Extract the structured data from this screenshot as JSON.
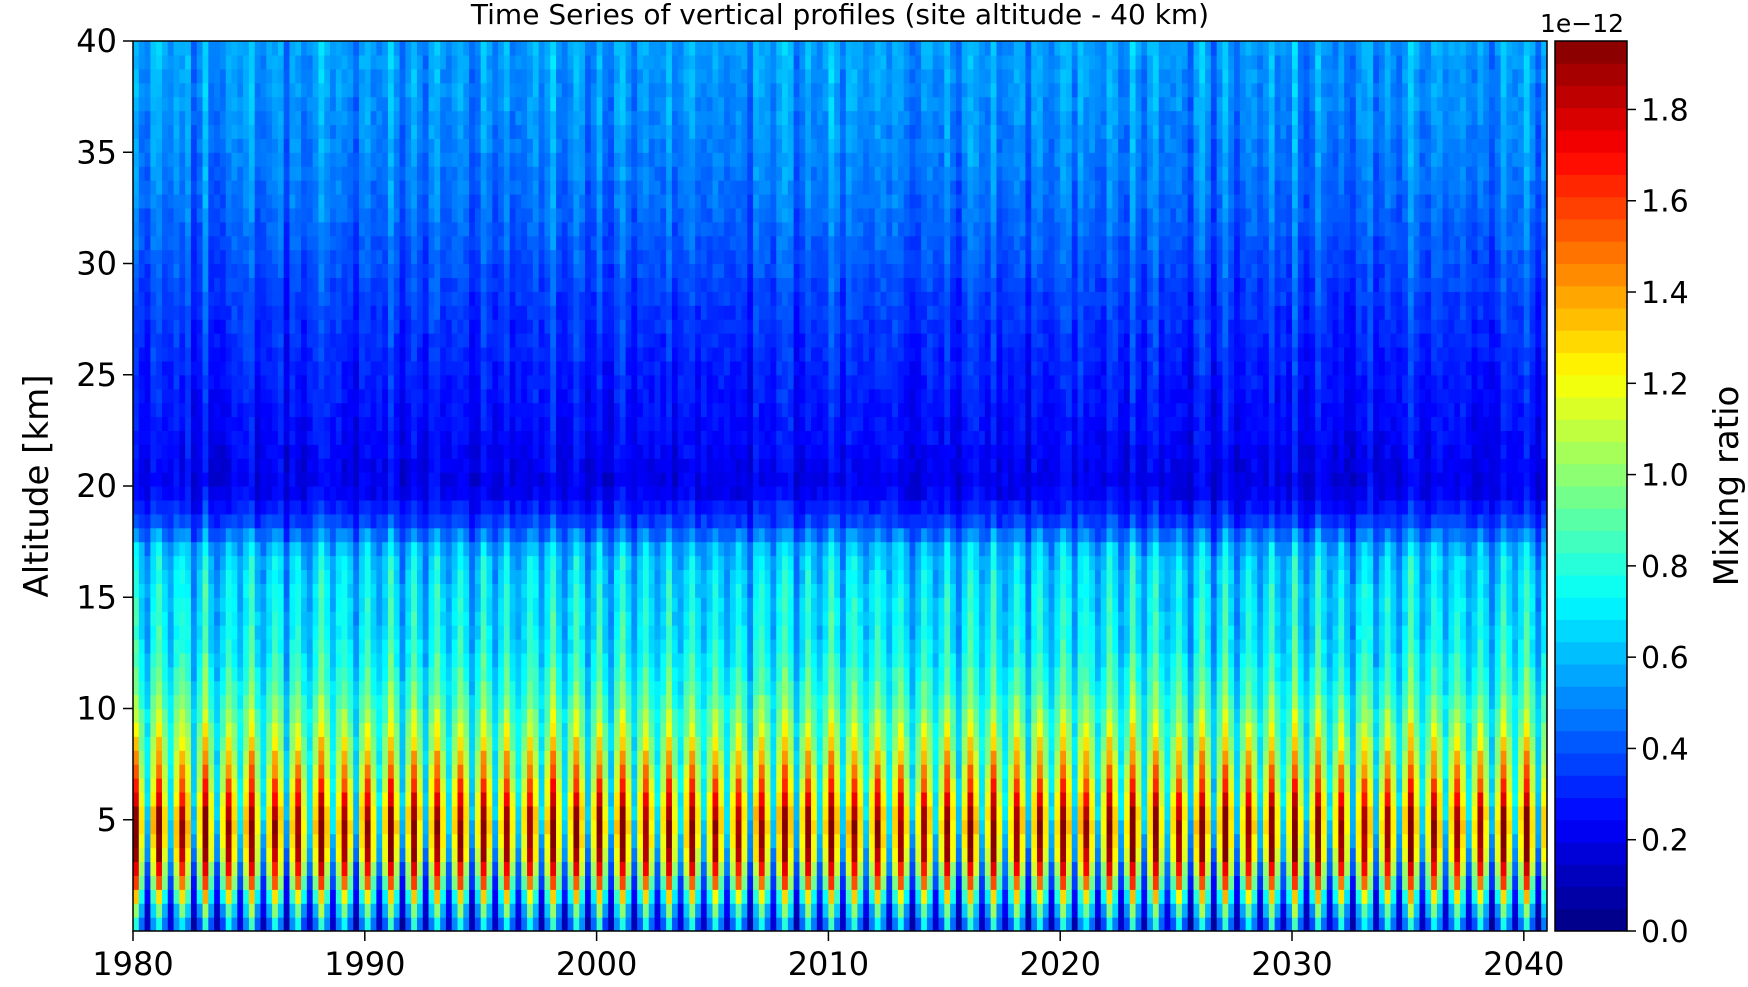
{
  "chart_data": {
    "type": "heatmap",
    "title": "Time Series of vertical profiles (site altitude - 40 km)",
    "xlabel": "",
    "ylabel": "Altitude [km]",
    "xlim": [
      1980,
      2041
    ],
    "ylim": [
      0,
      40
    ],
    "x_ticks": [
      "1980",
      "1990",
      "2000",
      "2010",
      "2020",
      "2030",
      "2040"
    ],
    "y_ticks": [
      "5",
      "10",
      "15",
      "20",
      "25",
      "30",
      "35",
      "40"
    ],
    "colorbar": {
      "label": "Mixing ratio",
      "multiplier": "1e−12",
      "range": [
        0.0,
        1.95
      ],
      "ticks": [
        "0.0",
        "0.2",
        "0.4",
        "0.6",
        "0.8",
        "1.0",
        "1.2",
        "1.4",
        "1.6",
        "1.8"
      ],
      "colormap": "jet"
    },
    "series": [
      {
        "values_description": "",
        "altitude_km": [
          0.5,
          2,
          3.5,
          5,
          7,
          9,
          11,
          13,
          15,
          17,
          18.5,
          20,
          22,
          25,
          28,
          31,
          34,
          37,
          40
        ],
        "typical_mixing_ratio": [
          0.45,
          0.9,
          1.2,
          1.3,
          1.1,
          0.95,
          0.8,
          0.7,
          0.68,
          0.62,
          0.35,
          0.2,
          0.25,
          0.3,
          0.35,
          0.42,
          0.48,
          0.52,
          0.55
        ]
      }
    ]
  }
}
